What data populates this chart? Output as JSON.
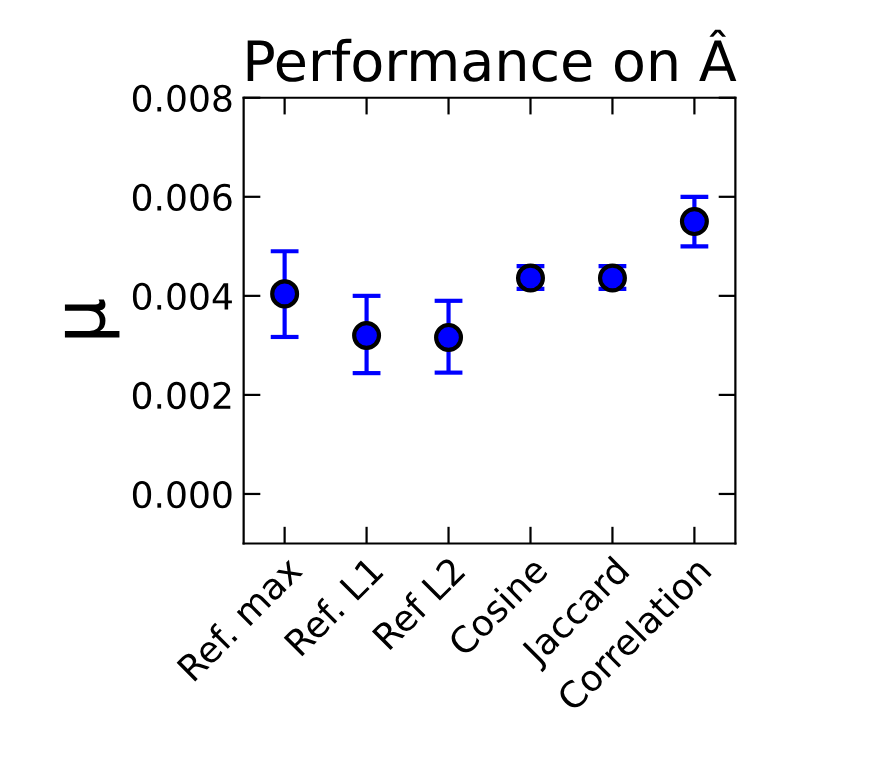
{
  "chart_data": {
    "type": "scatter",
    "title": "Performance on Â",
    "ylabel": "μ",
    "categories": [
      "Ref. max",
      "Ref. L1",
      "Ref L2",
      "Cosine",
      "Jaccard",
      "Correlation"
    ],
    "values": [
      0.00404,
      0.0032,
      0.00316,
      0.00436,
      0.00436,
      0.0055
    ],
    "errors": [
      [
        0.00317,
        0.0049
      ],
      [
        0.00244,
        0.004
      ],
      [
        0.00245,
        0.0039
      ],
      [
        0.00414,
        0.0046
      ],
      [
        0.00414,
        0.0046
      ],
      [
        0.005,
        0.006
      ]
    ],
    "color": "#0000ff",
    "marker": "circle",
    "ylim": [
      -0.001,
      0.008
    ],
    "yticks": [
      {
        "value": 0,
        "label": "0.000"
      },
      {
        "value": 0.002,
        "label": "0.002"
      },
      {
        "value": 0.004,
        "label": "0.004"
      },
      {
        "value": 0.006,
        "label": "0.006"
      },
      {
        "value": 0.008,
        "label": "0.008"
      }
    ],
    "grid": false
  }
}
